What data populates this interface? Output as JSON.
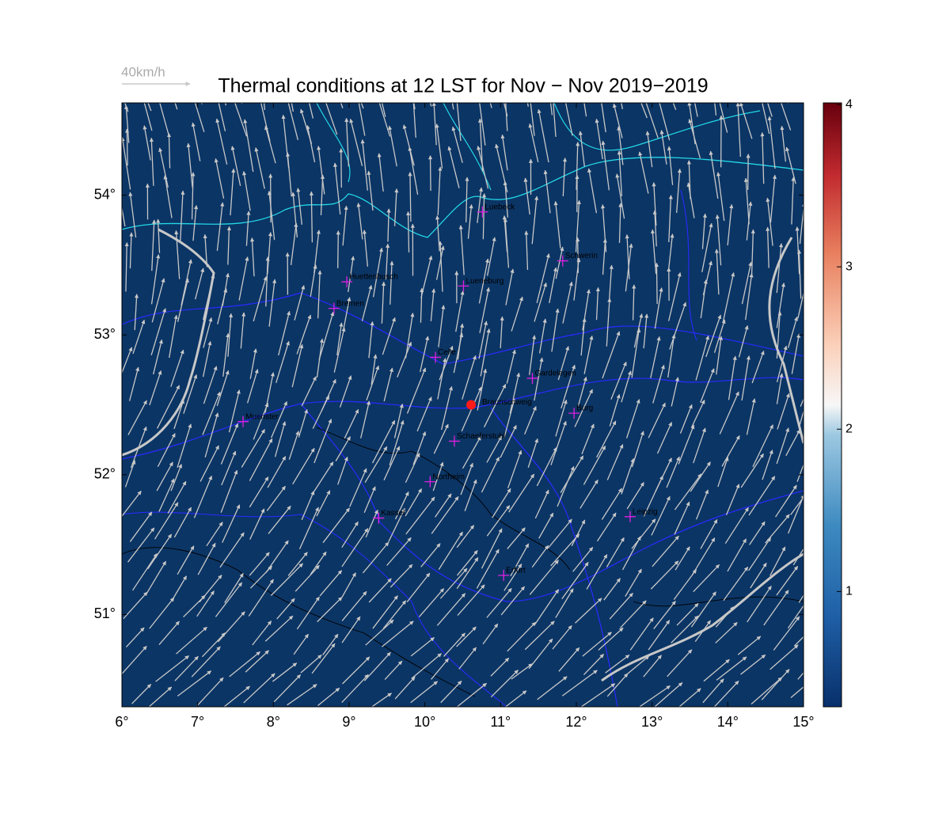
{
  "title": "Thermal conditions at 12 LST for Nov − Nov  2019−2019",
  "reference_arrow_label": "40km/h",
  "map": {
    "xlim": [
      6,
      15
    ],
    "ylim": [
      50.34,
      54.66
    ],
    "xticks": [
      {
        "value": 6,
        "label": "6°"
      },
      {
        "value": 7,
        "label": "7°"
      },
      {
        "value": 8,
        "label": "8°"
      },
      {
        "value": 9,
        "label": "9°"
      },
      {
        "value": 10,
        "label": "10°"
      },
      {
        "value": 11,
        "label": "11°"
      },
      {
        "value": 12,
        "label": "12°"
      },
      {
        "value": 13,
        "label": "13°"
      },
      {
        "value": 14,
        "label": "14°"
      },
      {
        "value": 15,
        "label": "15°"
      }
    ],
    "yticks": [
      {
        "value": 51,
        "label": "51°"
      },
      {
        "value": 52,
        "label": "52°"
      },
      {
        "value": 53,
        "label": "53°"
      },
      {
        "value": 54,
        "label": "54°"
      }
    ],
    "cities": [
      {
        "name": "Luebeck",
        "lon": 10.76,
        "lat": 53.88
      },
      {
        "name": "Schwerin",
        "lon": 11.82,
        "lat": 53.53
      },
      {
        "name": "Huettenbusch",
        "lon": 8.97,
        "lat": 53.38
      },
      {
        "name": "Lueneburg",
        "lon": 10.51,
        "lat": 53.35
      },
      {
        "name": "Bremen",
        "lon": 8.8,
        "lat": 53.19
      },
      {
        "name": "Celle",
        "lon": 10.14,
        "lat": 52.84
      },
      {
        "name": "Gardelegen",
        "lon": 11.42,
        "lat": 52.69
      },
      {
        "name": "Burg",
        "lon": 11.97,
        "lat": 52.44
      },
      {
        "name": "Muenster",
        "lon": 7.6,
        "lat": 52.38
      },
      {
        "name": "Schaeferstuhl",
        "lon": 10.39,
        "lat": 52.24
      },
      {
        "name": "Northeim",
        "lon": 10.07,
        "lat": 51.95
      },
      {
        "name": "Kassel",
        "lon": 9.39,
        "lat": 51.69
      },
      {
        "name": "Leipzig",
        "lon": 12.71,
        "lat": 51.7
      },
      {
        "name": "Erfurt",
        "lon": 11.04,
        "lat": 51.28
      }
    ],
    "marker": {
      "name": "Braunschweig",
      "lon": 10.61,
      "lat": 52.5,
      "color": "#ff1a1a"
    },
    "city_color": "#e020e0"
  },
  "colorbar": {
    "lim": [
      0.29,
      4.01
    ],
    "ticks": [
      1,
      2,
      3,
      4
    ]
  }
}
